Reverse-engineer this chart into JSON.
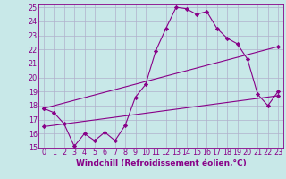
{
  "background_color": "#c8e8e8",
  "grid_color": "#b0b0cc",
  "line_color": "#880088",
  "marker_color": "#880088",
  "xlabel": "Windchill (Refroidissement éolien,°C)",
  "xlabel_fontsize": 6.5,
  "tick_fontsize": 5.8,
  "xlim": [
    -0.5,
    23.5
  ],
  "ylim": [
    15,
    25.2
  ],
  "yticks": [
    15,
    16,
    17,
    18,
    19,
    20,
    21,
    22,
    23,
    24,
    25
  ],
  "xticks": [
    0,
    1,
    2,
    3,
    4,
    5,
    6,
    7,
    8,
    9,
    10,
    11,
    12,
    13,
    14,
    15,
    16,
    17,
    18,
    19,
    20,
    21,
    22,
    23
  ],
  "series1_x": [
    0,
    1,
    2,
    3,
    4,
    5,
    6,
    7,
    8,
    9,
    10,
    11,
    12,
    13,
    14,
    15,
    16,
    17,
    18,
    19,
    20,
    21,
    22,
    23
  ],
  "series1_y": [
    17.8,
    17.5,
    16.7,
    15.1,
    16.0,
    15.5,
    16.1,
    15.5,
    16.6,
    18.6,
    19.5,
    21.9,
    23.5,
    25.0,
    24.9,
    24.5,
    24.7,
    23.5,
    22.8,
    22.4,
    21.3,
    18.8,
    18.0,
    19.0
  ],
  "series2_x": [
    0,
    23
  ],
  "series2_y": [
    17.8,
    22.2
  ],
  "series3_x": [
    0,
    23
  ],
  "series3_y": [
    16.5,
    18.7
  ]
}
